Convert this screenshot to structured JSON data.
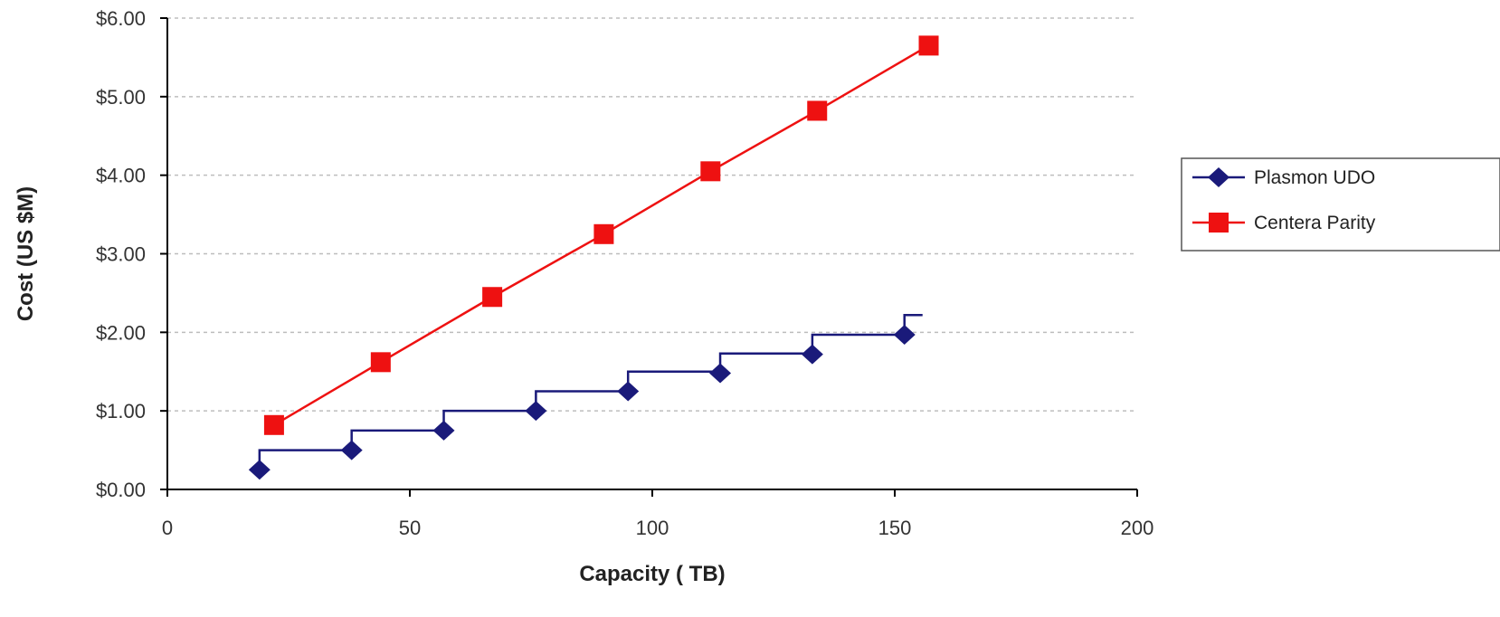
{
  "chart_data": {
    "type": "line",
    "title": "",
    "xlabel": "Capacity ( TB)",
    "ylabel": "Cost (US $M)",
    "xlim": [
      0,
      200
    ],
    "ylim": [
      0,
      6
    ],
    "x_ticks": [
      "0",
      "50",
      "100",
      "150",
      "200"
    ],
    "x_tick_values": [
      0,
      50,
      100,
      150,
      200
    ],
    "y_ticks": [
      "$0.00",
      "$1.00",
      "$2.00",
      "$3.00",
      "$4.00",
      "$5.00",
      "$6.00"
    ],
    "y_tick_values": [
      0,
      1,
      2,
      3,
      4,
      5,
      6
    ],
    "grid": "horizontal dashed",
    "legend_position": "right",
    "series": [
      {
        "name": "Plasmon UDO",
        "color": "#1a1a7a",
        "marker": "diamond",
        "step": true,
        "x": [
          19,
          38,
          57,
          76,
          95,
          114,
          133,
          152
        ],
        "values": [
          0.25,
          0.5,
          0.75,
          1.0,
          1.25,
          1.48,
          1.72,
          1.97
        ]
      },
      {
        "name": "Centera Parity",
        "color": "#ee1111",
        "marker": "square",
        "step": false,
        "x": [
          22,
          44,
          67,
          90,
          112,
          134,
          157
        ],
        "values": [
          0.82,
          1.62,
          2.45,
          3.25,
          4.05,
          4.82,
          5.65
        ]
      }
    ]
  }
}
